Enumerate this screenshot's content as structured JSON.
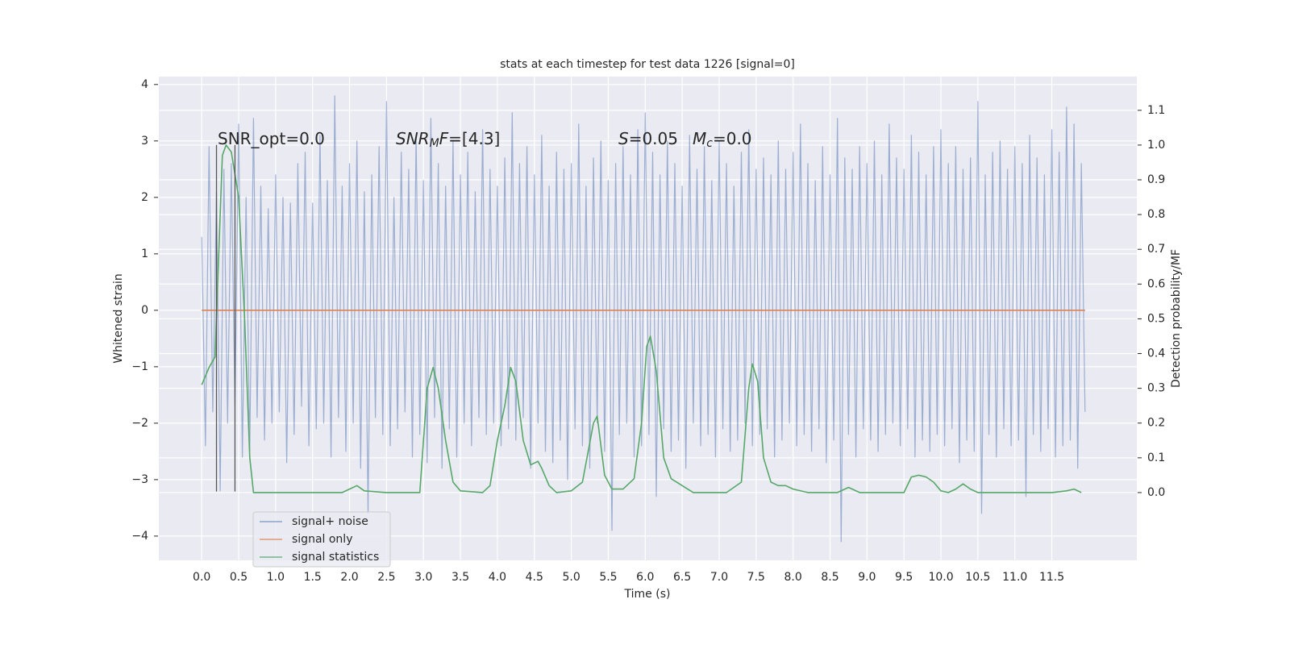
{
  "chart_data": {
    "type": "line",
    "title": "stats at each timestep for test data 1226 [signal=0]",
    "xlabel": "Time (s)",
    "ylabel": "Whitened strain",
    "y2label": "Detection probability/MF",
    "xlim": [
      -0.58,
      12.65
    ],
    "ylim": [
      -4.43,
      4.14
    ],
    "y2lim": [
      -0.195,
      1.197
    ],
    "xticks": [
      {
        "value": 0,
        "label": "0.0"
      },
      {
        "value": 0.5,
        "label": "0.5"
      },
      {
        "value": 1,
        "label": "1.0"
      },
      {
        "value": 1.5,
        "label": "1.5"
      },
      {
        "value": 2,
        "label": "2.0"
      },
      {
        "value": 2.5,
        "label": "2.5"
      },
      {
        "value": 3,
        "label": "3.0"
      },
      {
        "value": 3.5,
        "label": "3.5"
      },
      {
        "value": 4,
        "label": "4.0"
      },
      {
        "value": 4.5,
        "label": "4.5"
      },
      {
        "value": 5,
        "label": "5.0"
      },
      {
        "value": 5.5,
        "label": "5.5"
      },
      {
        "value": 6,
        "label": "6.0"
      },
      {
        "value": 6.5,
        "label": "6.5"
      },
      {
        "value": 7,
        "label": "7.0"
      },
      {
        "value": 7.5,
        "label": "7.5"
      },
      {
        "value": 8,
        "label": "8.0"
      },
      {
        "value": 8.5,
        "label": "8.5"
      },
      {
        "value": 9,
        "label": "9.0"
      },
      {
        "value": 9.5,
        "label": "9.5"
      },
      {
        "value": 10,
        "label": "10.0"
      },
      {
        "value": 10.5,
        "label": "10.5"
      },
      {
        "value": 11,
        "label": "11.0"
      },
      {
        "value": 11.5,
        "label": "11.5"
      }
    ],
    "yticks": [
      {
        "value": -4,
        "label": "−4"
      },
      {
        "value": -3,
        "label": "−3"
      },
      {
        "value": -2,
        "label": "−2"
      },
      {
        "value": -1,
        "label": "−1"
      },
      0,
      1,
      2,
      3,
      4
    ],
    "y2ticks": [
      {
        "value": 0,
        "label": "0.0"
      },
      {
        "value": 0.1,
        "label": "0.1"
      },
      {
        "value": 0.2,
        "label": "0.2"
      },
      {
        "value": 0.3,
        "label": "0.3"
      },
      {
        "value": 0.4,
        "label": "0.4"
      },
      {
        "value": 0.5,
        "label": "0.5"
      },
      {
        "value": 0.6,
        "label": "0.6"
      },
      {
        "value": 0.7,
        "label": "0.7"
      },
      {
        "value": 0.8,
        "label": "0.8"
      },
      {
        "value": 0.9,
        "label": "0.9"
      },
      {
        "value": 1,
        "label": "1.0"
      },
      {
        "value": 1.1,
        "label": "1.1"
      }
    ],
    "grid": true,
    "legend": "lower left",
    "series": [
      {
        "name": "signal+ noise",
        "color": "#4c72b0",
        "x": [
          0,
          0.05,
          0.1,
          0.15,
          0.2,
          0.25,
          0.3,
          0.35,
          0.4,
          0.45,
          0.5,
          0.55,
          0.6,
          0.65,
          0.7,
          0.75,
          0.8,
          0.85,
          0.9,
          0.95,
          1,
          1.05,
          1.1,
          1.15,
          1.2,
          1.25,
          1.3,
          1.35,
          1.4,
          1.45,
          1.5,
          1.55,
          1.6,
          1.65,
          1.7,
          1.75,
          1.8,
          1.85,
          1.9,
          1.95,
          2,
          2.05,
          2.1,
          2.15,
          2.2,
          2.25,
          2.3,
          2.35,
          2.4,
          2.45,
          2.5,
          2.55,
          2.6,
          2.65,
          2.7,
          2.75,
          2.8,
          2.85,
          2.9,
          2.95,
          3,
          3.05,
          3.1,
          3.15,
          3.2,
          3.25,
          3.3,
          3.35,
          3.4,
          3.45,
          3.5,
          3.55,
          3.6,
          3.65,
          3.7,
          3.75,
          3.8,
          3.85,
          3.9,
          3.95,
          4,
          4.05,
          4.1,
          4.15,
          4.2,
          4.25,
          4.3,
          4.35,
          4.4,
          4.45,
          4.5,
          4.55,
          4.6,
          4.65,
          4.7,
          4.75,
          4.8,
          4.85,
          4.9,
          4.95,
          5,
          5.05,
          5.1,
          5.15,
          5.2,
          5.25,
          5.3,
          5.35,
          5.4,
          5.45,
          5.5,
          5.55,
          5.6,
          5.65,
          5.7,
          5.75,
          5.8,
          5.85,
          5.9,
          5.95,
          6,
          6.05,
          6.1,
          6.15,
          6.2,
          6.25,
          6.3,
          6.35,
          6.4,
          6.45,
          6.5,
          6.55,
          6.6,
          6.65,
          6.7,
          6.75,
          6.8,
          6.85,
          6.9,
          6.95,
          7,
          7.05,
          7.1,
          7.15,
          7.2,
          7.25,
          7.3,
          7.35,
          7.4,
          7.45,
          7.5,
          7.55,
          7.6,
          7.65,
          7.7,
          7.75,
          7.8,
          7.85,
          7.9,
          7.95,
          8,
          8.05,
          8.1,
          8.15,
          8.2,
          8.25,
          8.3,
          8.35,
          8.4,
          8.45,
          8.5,
          8.55,
          8.6,
          8.65,
          8.7,
          8.75,
          8.8,
          8.85,
          8.9,
          8.95,
          9,
          9.05,
          9.1,
          9.15,
          9.2,
          9.25,
          9.3,
          9.35,
          9.4,
          9.45,
          9.5,
          9.55,
          9.6,
          9.65,
          9.7,
          9.75,
          9.8,
          9.85,
          9.9,
          9.95,
          10,
          10.05,
          10.1,
          10.15,
          10.2,
          10.25,
          10.3,
          10.35,
          10.4,
          10.45,
          10.5,
          10.55,
          10.6,
          10.65,
          10.7,
          10.75,
          10.8,
          10.85,
          10.9,
          10.95,
          11,
          11.05,
          11.1,
          11.15,
          11.2,
          11.25,
          11.3,
          11.35,
          11.4,
          11.45,
          11.5,
          11.55,
          11.6,
          11.65,
          11.7,
          11.75,
          11.8,
          11.85,
          11.9,
          11.95
        ],
        "values": [
          1.3,
          -2.4,
          2.9,
          -1.8,
          2.1,
          -3.2,
          2.5,
          -2.0,
          2.6,
          -1.7,
          3.3,
          -2.6,
          2.0,
          -2.5,
          3.4,
          -1.9,
          2.2,
          -2.3,
          1.8,
          -2.0,
          2.4,
          -1.8,
          2.0,
          -2.7,
          1.9,
          -2.2,
          2.6,
          -1.7,
          2.8,
          -2.4,
          1.9,
          -2.1,
          3.1,
          -2.0,
          2.3,
          -2.6,
          3.8,
          -1.9,
          2.2,
          -2.5,
          2.6,
          -2.0,
          3.0,
          -2.8,
          2.1,
          -3.6,
          2.4,
          -1.9,
          2.9,
          -2.2,
          3.7,
          -2.4,
          2.0,
          -2.1,
          2.8,
          -1.8,
          2.5,
          -2.6,
          3.1,
          -2.2,
          2.3,
          -2.7,
          3.4,
          -1.9,
          2.6,
          -2.8,
          2.2,
          -2.1,
          3.0,
          -2.6,
          2.4,
          -2.0,
          2.8,
          -2.4,
          2.1,
          -1.9,
          3.2,
          -2.2,
          2.5,
          -2.0,
          2.2,
          -2.4,
          2.7,
          -2.1,
          3.5,
          -2.3,
          2.6,
          -1.9,
          2.9,
          -2.8,
          2.4,
          -2.0,
          3.1,
          -2.5,
          2.2,
          -2.7,
          2.8,
          -2.3,
          2.5,
          -3.0,
          2.6,
          -2.1,
          3.3,
          -2.4,
          2.2,
          -2.8,
          2.7,
          -2.0,
          3.0,
          -2.5,
          2.3,
          -3.9,
          2.6,
          -2.2,
          2.9,
          -2.0,
          2.4,
          -2.6,
          3.2,
          -2.4,
          3.5,
          -2.2,
          2.8,
          -3.3,
          2.4,
          -2.1,
          3.0,
          -2.5,
          2.6,
          -2.3,
          2.2,
          -2.8,
          3.1,
          -2.0,
          2.5,
          -2.4,
          2.9,
          -2.2,
          2.3,
          -2.6,
          3.0,
          -2.1,
          2.6,
          -2.5,
          2.2,
          -2.3,
          2.8,
          -2.0,
          3.2,
          -2.4,
          2.5,
          -2.2,
          2.7,
          -2.1,
          2.4,
          -2.6,
          3.0,
          -2.3,
          2.5,
          -2.0,
          2.8,
          -2.4,
          3.3,
          -2.2,
          2.6,
          -2.5,
          2.3,
          -2.1,
          2.9,
          -2.7,
          2.4,
          -2.3,
          3.4,
          -4.1,
          2.7,
          -2.2,
          2.5,
          -2.6,
          2.9,
          -2.1,
          2.6,
          -2.3,
          3.0,
          -2.5,
          2.4,
          -2.2,
          3.3,
          -2.0,
          2.7,
          -2.4,
          2.5,
          -2.1,
          3.1,
          -2.6,
          2.8,
          -2.3,
          2.4,
          -2.5,
          2.9,
          -2.2,
          3.2,
          -2.4,
          2.6,
          -2.1,
          2.9,
          -2.7,
          2.5,
          -2.3,
          2.7,
          -2.5,
          3.7,
          -3.6,
          2.4,
          -2.2,
          2.8,
          -2.6,
          3.0,
          -2.1,
          2.5,
          -2.4,
          2.9,
          -2.3,
          2.6,
          -3.3,
          3.1,
          -2.2,
          2.7,
          -2.5,
          2.4,
          -2.1,
          3.2,
          -2.6,
          2.8,
          -2.4,
          3.6,
          -2.3,
          3.3,
          -2.8,
          2.6,
          -1.8
        ]
      },
      {
        "name": "signal only",
        "color": "#dd8452",
        "x": [
          0,
          11.95
        ],
        "values": [
          0,
          0
        ]
      },
      {
        "name": "signal statistics",
        "color": "#55a868",
        "axis": "y2",
        "x": [
          0,
          0.1,
          0.18,
          0.25,
          0.28,
          0.33,
          0.4,
          0.5,
          0.58,
          0.65,
          0.7,
          1.0,
          1.5,
          1.9,
          2.0,
          2.1,
          2.2,
          2.5,
          2.95,
          3.05,
          3.13,
          3.2,
          3.3,
          3.4,
          3.5,
          3.8,
          3.9,
          4.0,
          4.1,
          4.18,
          4.25,
          4.35,
          4.45,
          4.55,
          4.6,
          4.7,
          4.8,
          5.0,
          5.15,
          5.3,
          5.35,
          5.45,
          5.55,
          5.7,
          5.85,
          5.95,
          6.02,
          6.07,
          6.15,
          6.25,
          6.35,
          6.5,
          6.65,
          7.1,
          7.3,
          7.4,
          7.45,
          7.52,
          7.6,
          7.7,
          7.8,
          7.9,
          8.0,
          8.2,
          8.6,
          8.75,
          8.9,
          9.5,
          9.6,
          9.7,
          9.8,
          9.9,
          10.0,
          10.1,
          10.2,
          10.3,
          10.4,
          10.5,
          11.5,
          11.7,
          11.8,
          11.9
        ],
        "values": [
          0.31,
          0.36,
          0.39,
          0.8,
          0.97,
          1.0,
          0.98,
          0.85,
          0.5,
          0.1,
          0.0,
          0.0,
          0.0,
          0.0,
          0.01,
          0.02,
          0.005,
          0.0,
          0.0,
          0.3,
          0.36,
          0.3,
          0.15,
          0.03,
          0.005,
          0.0,
          0.02,
          0.15,
          0.25,
          0.36,
          0.32,
          0.15,
          0.08,
          0.09,
          0.07,
          0.02,
          0.0,
          0.005,
          0.03,
          0.2,
          0.22,
          0.05,
          0.01,
          0.01,
          0.04,
          0.2,
          0.42,
          0.45,
          0.35,
          0.1,
          0.04,
          0.02,
          0.0,
          0.0,
          0.03,
          0.3,
          0.37,
          0.32,
          0.1,
          0.03,
          0.02,
          0.02,
          0.01,
          0.0,
          0.0,
          0.015,
          0.0,
          0.0,
          0.045,
          0.05,
          0.045,
          0.03,
          0.005,
          0.0,
          0.01,
          0.025,
          0.01,
          0.0,
          0.0,
          0.005,
          0.01,
          0.0
        ]
      }
    ],
    "vlines": {
      "x": [
        0.2,
        0.45
      ],
      "ymin": -3.21,
      "ymax": 2.93,
      "color": "#555555"
    },
    "annotations": [
      [
        {
          "text": "SNR_opt=0.0"
        }
      ],
      [
        {
          "text": "SNR",
          "style": "italic"
        },
        {
          "text": "M",
          "style": "italic-sub"
        },
        {
          "text": "F",
          "style": "italic"
        },
        {
          "text": "=[4.3]"
        }
      ],
      [
        {
          "text": "S",
          "style": "italic"
        },
        {
          "text": "=0.05"
        }
      ],
      [
        {
          "text": "M",
          "style": "italic"
        },
        {
          "text": "c",
          "style": "italic-sub"
        },
        {
          "text": "=0.0"
        }
      ]
    ]
  }
}
